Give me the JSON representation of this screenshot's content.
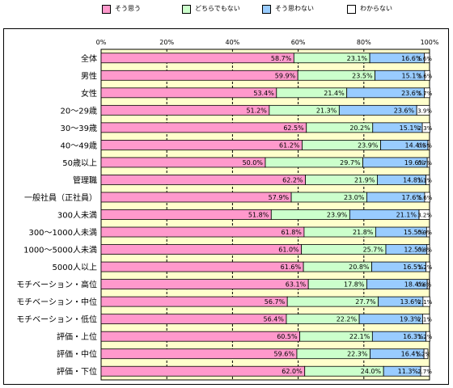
{
  "legend": [
    {
      "label": "そう思う",
      "color": "#ff99cc"
    },
    {
      "label": "どちらでもない",
      "color": "#ccffcc"
    },
    {
      "label": "そう思わない",
      "color": "#99ccff"
    },
    {
      "label": "わからない",
      "color": "#ffffff"
    }
  ],
  "chart_data": {
    "type": "bar",
    "orientation": "horizontal",
    "stacked": true,
    "xlim": [
      0,
      100
    ],
    "ticks": [
      "0%",
      "20%",
      "40%",
      "60%",
      "80%",
      "100%"
    ],
    "plot_background": "#ffffcc",
    "categories": [
      "全体",
      "男性",
      "女性",
      "20～29歳",
      "30～39歳",
      "40～49歳",
      "50歳以上",
      "管理職",
      "一般社員（正社員）",
      "300人未満",
      "300～1000人未満",
      "1000～5000人未満",
      "5000人以上",
      "モチベーション・高位",
      "モチベーション・中位",
      "モチベーション・低位",
      "評価・上位",
      "評価・中位",
      "評価・下位"
    ],
    "series": [
      {
        "name": "そう思う",
        "color": "#ff99cc",
        "values": [
          58.7,
          59.9,
          53.4,
          51.2,
          62.5,
          61.2,
          50.0,
          62.2,
          57.9,
          51.8,
          61.8,
          61.0,
          61.6,
          63.1,
          56.7,
          56.4,
          60.5,
          59.6,
          62.0
        ],
        "labels": [
          "58.7%",
          "59.9%",
          "53.4%",
          "51.2%",
          "62.5%",
          "61.2%",
          "50.0%",
          "62.2%",
          "57.9%",
          "51.8%",
          "61.8%",
          "61.0%",
          "61.6%",
          "63.1%",
          "56.7%",
          "56.4%",
          "60.5%",
          "59.6%",
          "62.0%"
        ]
      },
      {
        "name": "どちらでもない",
        "color": "#ccffcc",
        "values": [
          23.1,
          23.5,
          21.4,
          21.3,
          20.2,
          23.9,
          29.7,
          21.9,
          23.0,
          23.9,
          21.8,
          25.7,
          20.8,
          17.8,
          27.7,
          22.2,
          22.1,
          22.3,
          24.0
        ],
        "labels": [
          "23.1%",
          "23.5%",
          "21.4%",
          "21.3%",
          "20.2%",
          "23.9%",
          "29.7%",
          "21.9%",
          "23.0%",
          "23.9%",
          "21.8%",
          "25.7%",
          "20.8%",
          "17.8%",
          "27.7%",
          "22.2%",
          "22.1%",
          "22.3%",
          "24.0%"
        ]
      },
      {
        "name": "そう思わない",
        "color": "#99ccff",
        "values": [
          16.6,
          15.1,
          23.6,
          23.6,
          15.1,
          14.4,
          19.6,
          14.8,
          17.6,
          21.1,
          15.5,
          12.5,
          16.5,
          18.4,
          13.6,
          19.3,
          16.3,
          16.4,
          11.3
        ],
        "labels": [
          "16.6%",
          "15.1%",
          "23.6%",
          "23.6%",
          "15.1%",
          "14.4%",
          "19.6%",
          "14.8%",
          "17.6%",
          "21.1%",
          "15.5%",
          "12.5%",
          "16.5%",
          "18.4%",
          "13.6%",
          "19.3%",
          "16.3%",
          "16.4%",
          "11.3%"
        ]
      },
      {
        "name": "わからない",
        "color": "#ffffff",
        "values": [
          1.6,
          1.6,
          1.7,
          3.9,
          2.3,
          0.5,
          0.7,
          1.1,
          1.6,
          3.2,
          0.9,
          0.8,
          1.2,
          0.6,
          2.1,
          2.1,
          1.2,
          1.2,
          2.7
        ],
        "labels": [
          "1.6%",
          "1.6%",
          "1.7%",
          "3.9%",
          "2.3%",
          "0.5%",
          "0.7%",
          "1.1%",
          "1.6%",
          "3.2%",
          "0.9%",
          "0.8%",
          "1.2%",
          "0.6%",
          "2.1%",
          "2.1%",
          "1.2%",
          "1.2%",
          "2.7%"
        ]
      }
    ]
  }
}
